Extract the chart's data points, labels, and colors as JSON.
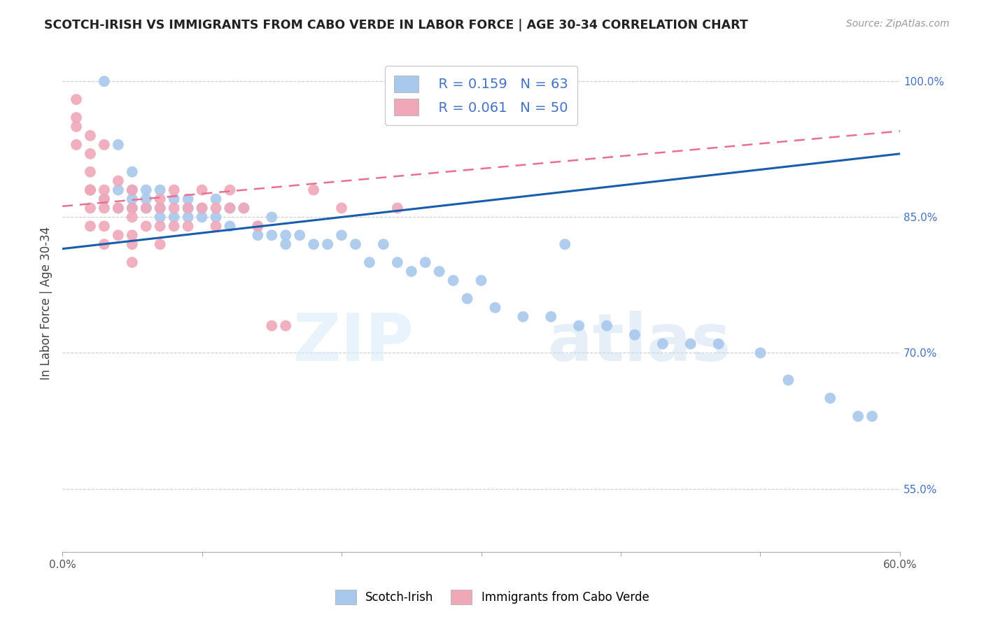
{
  "title": "SCOTCH-IRISH VS IMMIGRANTS FROM CABO VERDE IN LABOR FORCE | AGE 30-34 CORRELATION CHART",
  "source": "Source: ZipAtlas.com",
  "ylabel": "In Labor Force | Age 30-34",
  "xmin": 0.0,
  "xmax": 0.6,
  "ymin": 0.48,
  "ymax": 1.03,
  "yticks": [
    0.55,
    0.7,
    0.85,
    1.0
  ],
  "xticks": [
    0.0,
    0.1,
    0.2,
    0.3,
    0.4,
    0.5,
    0.6
  ],
  "xtick_labels": [
    "0.0%",
    "",
    "",
    "",
    "",
    "",
    "60.0%"
  ],
  "ytick_labels": [
    "55.0%",
    "70.0%",
    "85.0%",
    "100.0%"
  ],
  "legend_r1": "R = 0.159",
  "legend_n1": "N = 63",
  "legend_r2": "R = 0.061",
  "legend_n2": "N = 50",
  "blue_color": "#A8C8EC",
  "pink_color": "#F0A8B8",
  "blue_line_color": "#1A5DAD",
  "pink_line_color": "#E87090",
  "watermark_zip": "ZIP",
  "watermark_atlas": "atlas",
  "blue_scatter_x": [
    0.02,
    0.03,
    0.04,
    0.04,
    0.05,
    0.05,
    0.05,
    0.05,
    0.06,
    0.06,
    0.06,
    0.07,
    0.07,
    0.07,
    0.08,
    0.08,
    0.09,
    0.09,
    0.09,
    0.1,
    0.1,
    0.11,
    0.11,
    0.12,
    0.12,
    0.13,
    0.14,
    0.14,
    0.15,
    0.15,
    0.16,
    0.16,
    0.17,
    0.18,
    0.19,
    0.2,
    0.21,
    0.22,
    0.23,
    0.24,
    0.25,
    0.26,
    0.27,
    0.28,
    0.29,
    0.3,
    0.31,
    0.33,
    0.35,
    0.37,
    0.39,
    0.41,
    0.43,
    0.45,
    0.47,
    0.5,
    0.52,
    0.55,
    0.57,
    0.58,
    0.03,
    0.04,
    0.36
  ],
  "blue_scatter_y": [
    0.88,
    0.87,
    0.86,
    0.88,
    0.86,
    0.88,
    0.9,
    0.87,
    0.86,
    0.88,
    0.87,
    0.86,
    0.88,
    0.85,
    0.87,
    0.85,
    0.86,
    0.85,
    0.87,
    0.86,
    0.85,
    0.85,
    0.87,
    0.84,
    0.86,
    0.86,
    0.84,
    0.83,
    0.85,
    0.83,
    0.83,
    0.82,
    0.83,
    0.82,
    0.82,
    0.83,
    0.82,
    0.8,
    0.82,
    0.8,
    0.79,
    0.8,
    0.79,
    0.78,
    0.76,
    0.78,
    0.75,
    0.74,
    0.74,
    0.73,
    0.73,
    0.72,
    0.71,
    0.71,
    0.71,
    0.7,
    0.67,
    0.65,
    0.63,
    0.63,
    1.0,
    0.93,
    0.82
  ],
  "pink_scatter_x": [
    0.01,
    0.01,
    0.01,
    0.01,
    0.02,
    0.02,
    0.02,
    0.02,
    0.02,
    0.02,
    0.02,
    0.03,
    0.03,
    0.03,
    0.03,
    0.03,
    0.03,
    0.04,
    0.04,
    0.04,
    0.05,
    0.05,
    0.05,
    0.05,
    0.05,
    0.05,
    0.06,
    0.06,
    0.07,
    0.07,
    0.07,
    0.07,
    0.08,
    0.08,
    0.08,
    0.09,
    0.09,
    0.1,
    0.1,
    0.11,
    0.11,
    0.12,
    0.12,
    0.13,
    0.14,
    0.15,
    0.16,
    0.18,
    0.2,
    0.24
  ],
  "pink_scatter_y": [
    0.96,
    0.98,
    0.95,
    0.93,
    0.92,
    0.94,
    0.88,
    0.86,
    0.9,
    0.84,
    0.88,
    0.88,
    0.86,
    0.84,
    0.82,
    0.87,
    0.93,
    0.86,
    0.83,
    0.89,
    0.86,
    0.83,
    0.88,
    0.85,
    0.82,
    0.8,
    0.86,
    0.84,
    0.86,
    0.84,
    0.82,
    0.87,
    0.86,
    0.84,
    0.88,
    0.86,
    0.84,
    0.88,
    0.86,
    0.86,
    0.84,
    0.86,
    0.88,
    0.86,
    0.84,
    0.73,
    0.73,
    0.88,
    0.86,
    0.86
  ],
  "blue_line_x0": 0.0,
  "blue_line_x1": 0.6,
  "blue_line_y0": 0.815,
  "blue_line_y1": 0.92,
  "pink_line_x0": 0.0,
  "pink_line_x1": 0.6,
  "pink_line_y0": 0.862,
  "pink_line_y1": 0.945
}
